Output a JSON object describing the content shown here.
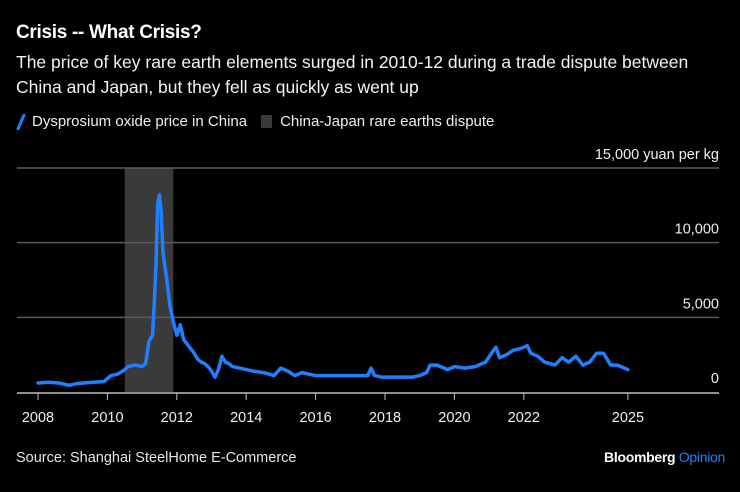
{
  "header": {
    "title": "Crisis -- What Crisis?",
    "subtitle": "The price of key rare earth elements surged in 2010-12 during a trade dispute between China and Japan, but they fell as quickly as went up"
  },
  "legend": {
    "series_label": "Dysprosium oxide price in China",
    "band_label": "China-Japan rare earths dispute"
  },
  "footer": {
    "source": "Source: Shanghai SteelHome E-Commerce",
    "brand_primary": "Bloomberg",
    "brand_secondary": "Opinion"
  },
  "colors": {
    "line": "#1f7fff",
    "band": "#3a3a3a",
    "grid": "#5a5a5a",
    "axis": "#bdbdbd",
    "background": "#000000"
  },
  "chart_data": {
    "type": "line",
    "title": "Crisis -- What Crisis?",
    "xlabel": "",
    "ylabel": "yuan per kg",
    "y_unit_label": "15,000 yuan per kg",
    "ylim": [
      0,
      15000
    ],
    "xlim": [
      2007.4,
      2027.6
    ],
    "grid": true,
    "legend_position": "top-left",
    "y_ticks": [
      {
        "value": 0,
        "label": "0"
      },
      {
        "value": 5000,
        "label": "5,000"
      },
      {
        "value": 10000,
        "label": "10,000"
      },
      {
        "value": 15000,
        "label": "15,000 yuan per kg"
      }
    ],
    "x_ticks": [
      {
        "value": 2008,
        "label": "2008"
      },
      {
        "value": 2010,
        "label": "2010"
      },
      {
        "value": 2012,
        "label": "2012"
      },
      {
        "value": 2014,
        "label": "2014"
      },
      {
        "value": 2016,
        "label": "2016"
      },
      {
        "value": 2018,
        "label": "2018"
      },
      {
        "value": 2020,
        "label": "2020"
      },
      {
        "value": 2022,
        "label": "2022"
      },
      {
        "value": 2025,
        "label": "2025"
      }
    ],
    "bands": [
      {
        "name": "China-Japan rare earths dispute",
        "start": 2010.5,
        "end": 2011.9
      }
    ],
    "series": [
      {
        "name": "Dysprosium oxide price in China",
        "x": [
          2008.0,
          2008.3,
          2008.6,
          2008.9,
          2009.1,
          2009.3,
          2009.6,
          2009.9,
          2010.1,
          2010.3,
          2010.5,
          2010.6,
          2010.8,
          2011.0,
          2011.1,
          2011.2,
          2011.3,
          2011.35,
          2011.4,
          2011.45,
          2011.5,
          2011.55,
          2011.6,
          2011.7,
          2011.8,
          2011.9,
          2012.0,
          2012.1,
          2012.2,
          2012.3,
          2012.4,
          2012.5,
          2012.6,
          2012.7,
          2012.8,
          2012.9,
          2013.0,
          2013.1,
          2013.2,
          2013.3,
          2013.4,
          2013.5,
          2013.6,
          2013.8,
          2014.0,
          2014.2,
          2014.5,
          2014.8,
          2015.0,
          2015.2,
          2015.4,
          2015.6,
          2015.8,
          2016.0,
          2016.3,
          2016.6,
          2016.9,
          2017.2,
          2017.5,
          2017.6,
          2017.7,
          2017.9,
          2018.2,
          2018.5,
          2018.8,
          2019.0,
          2019.2,
          2019.3,
          2019.5,
          2019.8,
          2020.0,
          2020.3,
          2020.6,
          2020.9,
          2021.1,
          2021.2,
          2021.3,
          2021.5,
          2021.7,
          2021.9,
          2022.1,
          2022.2,
          2022.4,
          2022.6,
          2022.9,
          2023.1,
          2023.3,
          2023.5,
          2023.7,
          2023.9,
          2024.1,
          2024.3,
          2024.5,
          2024.7,
          2024.9,
          2025.0
        ],
        "values": [
          600,
          650,
          600,
          450,
          550,
          600,
          650,
          700,
          1100,
          1200,
          1500,
          1700,
          1800,
          1700,
          1900,
          3400,
          3800,
          5800,
          8500,
          12600,
          13200,
          12000,
          9400,
          7700,
          5800,
          4700,
          3800,
          4500,
          3500,
          3200,
          2900,
          2600,
          2200,
          2000,
          1900,
          1700,
          1400,
          1000,
          1500,
          2400,
          2000,
          1900,
          1700,
          1600,
          1500,
          1400,
          1300,
          1100,
          1600,
          1400,
          1100,
          1300,
          1200,
          1100,
          1100,
          1100,
          1100,
          1100,
          1100,
          1600,
          1100,
          1000,
          1000,
          1000,
          1000,
          1100,
          1300,
          1800,
          1800,
          1500,
          1700,
          1600,
          1700,
          2000,
          2700,
          3000,
          2300,
          2500,
          2800,
          2900,
          3100,
          2600,
          2400,
          2000,
          1800,
          2300,
          2000,
          2400,
          1800,
          2000,
          2600,
          2600,
          1800,
          1800,
          1600,
          1500
        ]
      }
    ]
  }
}
